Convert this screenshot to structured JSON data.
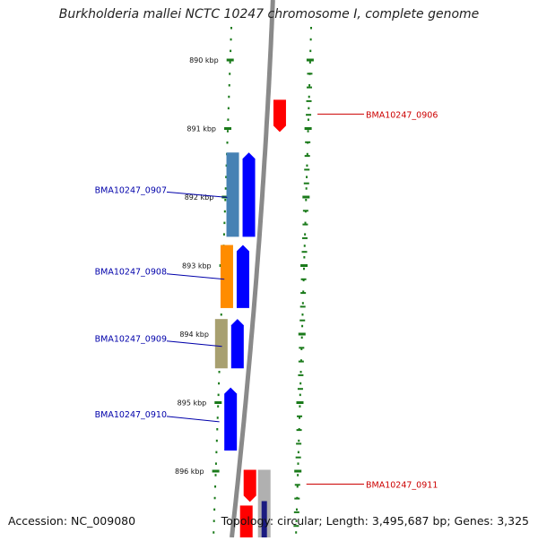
{
  "title": "Burkholderia mallei NCTC 10247 chromosome I, complete genome",
  "footer": {
    "accession": "Accession: NC_009080",
    "summary": "Topology: circular; Length: 3,495,687 bp; Genes: 3,325"
  },
  "colors": {
    "backbone": "#8a8a8a",
    "tick": "#1a7a1a",
    "forward_label": "#cc0000",
    "reverse_label": "#0000aa",
    "gene_red": "#ff0000",
    "gene_blue": "#0000ff",
    "cog_steelblue": "#4682b4",
    "cog_orange": "#ff8c00",
    "cog_khaki": "#a8a070",
    "cog_gray": "#b0b0b0"
  },
  "ruler": [
    {
      "kbp": 890,
      "label": "890 kbp"
    },
    {
      "kbp": 891,
      "label": "891 kbp"
    },
    {
      "kbp": 892,
      "label": "892 kbp"
    },
    {
      "kbp": 893,
      "label": "893 kbp"
    },
    {
      "kbp": 894,
      "label": "894 kbp"
    },
    {
      "kbp": 895,
      "label": "895 kbp"
    },
    {
      "kbp": 896,
      "label": "896 kbp"
    }
  ],
  "genes": [
    {
      "label": "BMA10247_0906",
      "strand": "forward",
      "color": "#ff0000",
      "start_kbp": 890.58,
      "end_kbp": 891.05
    },
    {
      "label": "BMA10247_0907",
      "strand": "reverse",
      "color": "#0000ff",
      "cog_color": "#4682b4",
      "start_kbp": 891.35,
      "end_kbp": 892.58
    },
    {
      "label": "BMA10247_0908",
      "strand": "reverse",
      "color": "#0000ff",
      "cog_color": "#ff8c00",
      "start_kbp": 892.7,
      "end_kbp": 893.62
    },
    {
      "label": "BMA10247_0909",
      "strand": "reverse",
      "color": "#0000ff",
      "cog_color": "#a8a070",
      "start_kbp": 893.78,
      "end_kbp": 894.5
    },
    {
      "label": "BMA10247_0910",
      "strand": "reverse",
      "color": "#0000ff",
      "start_kbp": 894.78,
      "end_kbp": 895.7
    },
    {
      "label": "BMA10247_0911",
      "strand": "forward",
      "color": "#ff0000",
      "cog_color": "#b0b0b0",
      "start_kbp": 895.98,
      "end_kbp": 896.45
    }
  ]
}
